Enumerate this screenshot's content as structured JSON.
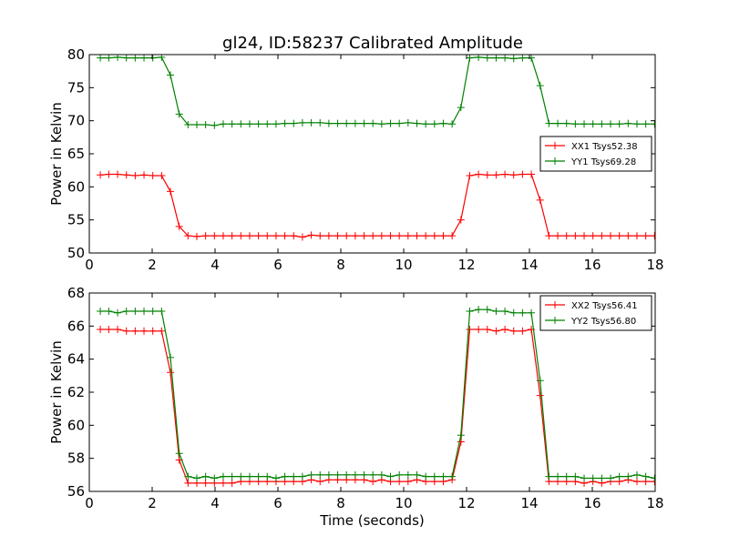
{
  "figure": {
    "title": "gl24, ID:58237 Calibrated Amplitude"
  },
  "chart_data": [
    {
      "type": "line",
      "title": "gl24, ID:58237 Calibrated Amplitude",
      "xlabel": "",
      "ylabel": "Power in Kelvin",
      "xlim": [
        0,
        18
      ],
      "ylim": [
        50,
        80
      ],
      "xticks": [
        0,
        2,
        4,
        6,
        8,
        10,
        12,
        14,
        16,
        18
      ],
      "yticks": [
        50,
        55,
        60,
        65,
        70,
        75,
        80
      ],
      "legend_position": "center-right",
      "x": [
        0.35,
        0.62,
        0.9,
        1.18,
        1.46,
        1.74,
        2.02,
        2.3,
        2.58,
        2.86,
        3.14,
        3.42,
        3.7,
        3.98,
        4.26,
        4.54,
        4.82,
        5.1,
        5.38,
        5.66,
        5.94,
        6.22,
        6.5,
        6.78,
        7.06,
        7.34,
        7.62,
        7.9,
        8.18,
        8.46,
        8.74,
        9.02,
        9.3,
        9.58,
        9.86,
        10.14,
        10.42,
        10.7,
        10.98,
        11.26,
        11.54,
        11.82,
        12.1,
        12.38,
        12.66,
        12.94,
        13.22,
        13.5,
        13.78,
        14.06,
        14.34,
        14.62,
        14.9,
        15.18,
        15.46,
        15.74,
        16.02,
        16.3,
        16.58,
        16.86,
        17.14,
        17.42,
        17.7,
        17.98
      ],
      "series": [
        {
          "name": "XX1 Tsys52.38",
          "color": "#ff0000",
          "values": [
            61.8,
            61.9,
            61.9,
            61.8,
            61.7,
            61.8,
            61.7,
            61.7,
            59.3,
            54.0,
            52.6,
            52.5,
            52.6,
            52.6,
            52.6,
            52.6,
            52.6,
            52.6,
            52.6,
            52.6,
            52.6,
            52.6,
            52.6,
            52.4,
            52.7,
            52.6,
            52.6,
            52.6,
            52.6,
            52.6,
            52.6,
            52.6,
            52.6,
            52.6,
            52.6,
            52.6,
            52.6,
            52.6,
            52.6,
            52.6,
            52.6,
            55.0,
            61.7,
            61.9,
            61.8,
            61.8,
            61.9,
            61.8,
            61.9,
            61.9,
            58.0,
            52.6,
            52.6,
            52.6,
            52.6,
            52.6,
            52.6,
            52.6,
            52.6,
            52.6,
            52.6,
            52.6,
            52.6,
            52.6
          ]
        },
        {
          "name": "YY1 Tsys69.28",
          "color": "#008000",
          "values": [
            79.5,
            79.5,
            79.6,
            79.5,
            79.5,
            79.5,
            79.5,
            79.6,
            76.9,
            71.0,
            69.4,
            69.4,
            69.4,
            69.3,
            69.5,
            69.5,
            69.5,
            69.5,
            69.5,
            69.5,
            69.5,
            69.6,
            69.6,
            69.7,
            69.7,
            69.7,
            69.6,
            69.6,
            69.6,
            69.6,
            69.6,
            69.6,
            69.5,
            69.6,
            69.6,
            69.7,
            69.6,
            69.5,
            69.5,
            69.6,
            69.5,
            72.0,
            79.5,
            79.6,
            79.5,
            79.5,
            79.5,
            79.4,
            79.5,
            79.5,
            75.3,
            69.6,
            69.6,
            69.6,
            69.5,
            69.5,
            69.5,
            69.5,
            69.5,
            69.5,
            69.6,
            69.5,
            69.5,
            69.5
          ]
        }
      ]
    },
    {
      "type": "line",
      "title": "",
      "xlabel": "Time (seconds)",
      "ylabel": "Power in Kelvin",
      "xlim": [
        0,
        18
      ],
      "ylim": [
        56,
        68
      ],
      "xticks": [
        0,
        2,
        4,
        6,
        8,
        10,
        12,
        14,
        16,
        18
      ],
      "yticks": [
        56,
        58,
        60,
        62,
        64,
        66,
        68
      ],
      "legend_position": "top-right",
      "x": [
        0.35,
        0.62,
        0.9,
        1.18,
        1.46,
        1.74,
        2.02,
        2.3,
        2.58,
        2.86,
        3.14,
        3.42,
        3.7,
        3.98,
        4.26,
        4.54,
        4.82,
        5.1,
        5.38,
        5.66,
        5.94,
        6.22,
        6.5,
        6.78,
        7.06,
        7.34,
        7.62,
        7.9,
        8.18,
        8.46,
        8.74,
        9.02,
        9.3,
        9.58,
        9.86,
        10.14,
        10.42,
        10.7,
        10.98,
        11.26,
        11.54,
        11.82,
        12.1,
        12.38,
        12.66,
        12.94,
        13.22,
        13.5,
        13.78,
        14.06,
        14.34,
        14.62,
        14.9,
        15.18,
        15.46,
        15.74,
        16.02,
        16.3,
        16.58,
        16.86,
        17.14,
        17.42,
        17.7,
        17.98
      ],
      "series": [
        {
          "name": "XX2 Tsys56.41",
          "color": "#ff0000",
          "values": [
            65.8,
            65.8,
            65.8,
            65.7,
            65.7,
            65.7,
            65.7,
            65.7,
            63.2,
            57.9,
            56.5,
            56.5,
            56.5,
            56.5,
            56.5,
            56.5,
            56.6,
            56.6,
            56.6,
            56.6,
            56.6,
            56.6,
            56.6,
            56.6,
            56.7,
            56.6,
            56.7,
            56.7,
            56.7,
            56.7,
            56.7,
            56.6,
            56.7,
            56.6,
            56.6,
            56.6,
            56.7,
            56.6,
            56.6,
            56.6,
            56.7,
            59.0,
            65.8,
            65.8,
            65.8,
            65.7,
            65.8,
            65.7,
            65.7,
            65.8,
            61.8,
            56.6,
            56.6,
            56.6,
            56.6,
            56.5,
            56.6,
            56.5,
            56.6,
            56.6,
            56.7,
            56.6,
            56.6,
            56.6
          ]
        },
        {
          "name": "YY2 Tsys56.80",
          "color": "#008000",
          "values": [
            66.9,
            66.9,
            66.8,
            66.9,
            66.9,
            66.9,
            66.9,
            66.9,
            64.1,
            58.3,
            56.9,
            56.8,
            56.9,
            56.8,
            56.9,
            56.9,
            56.9,
            56.9,
            56.9,
            56.9,
            56.8,
            56.9,
            56.9,
            56.9,
            57.0,
            57.0,
            57.0,
            57.0,
            57.0,
            57.0,
            57.0,
            57.0,
            57.0,
            56.9,
            57.0,
            57.0,
            57.0,
            56.9,
            56.9,
            56.9,
            56.9,
            59.4,
            66.9,
            67.0,
            67.0,
            66.9,
            66.9,
            66.8,
            66.8,
            66.8,
            62.7,
            56.9,
            56.9,
            56.9,
            56.9,
            56.8,
            56.8,
            56.8,
            56.8,
            56.9,
            56.9,
            57.0,
            56.9,
            56.8
          ]
        }
      ]
    }
  ]
}
